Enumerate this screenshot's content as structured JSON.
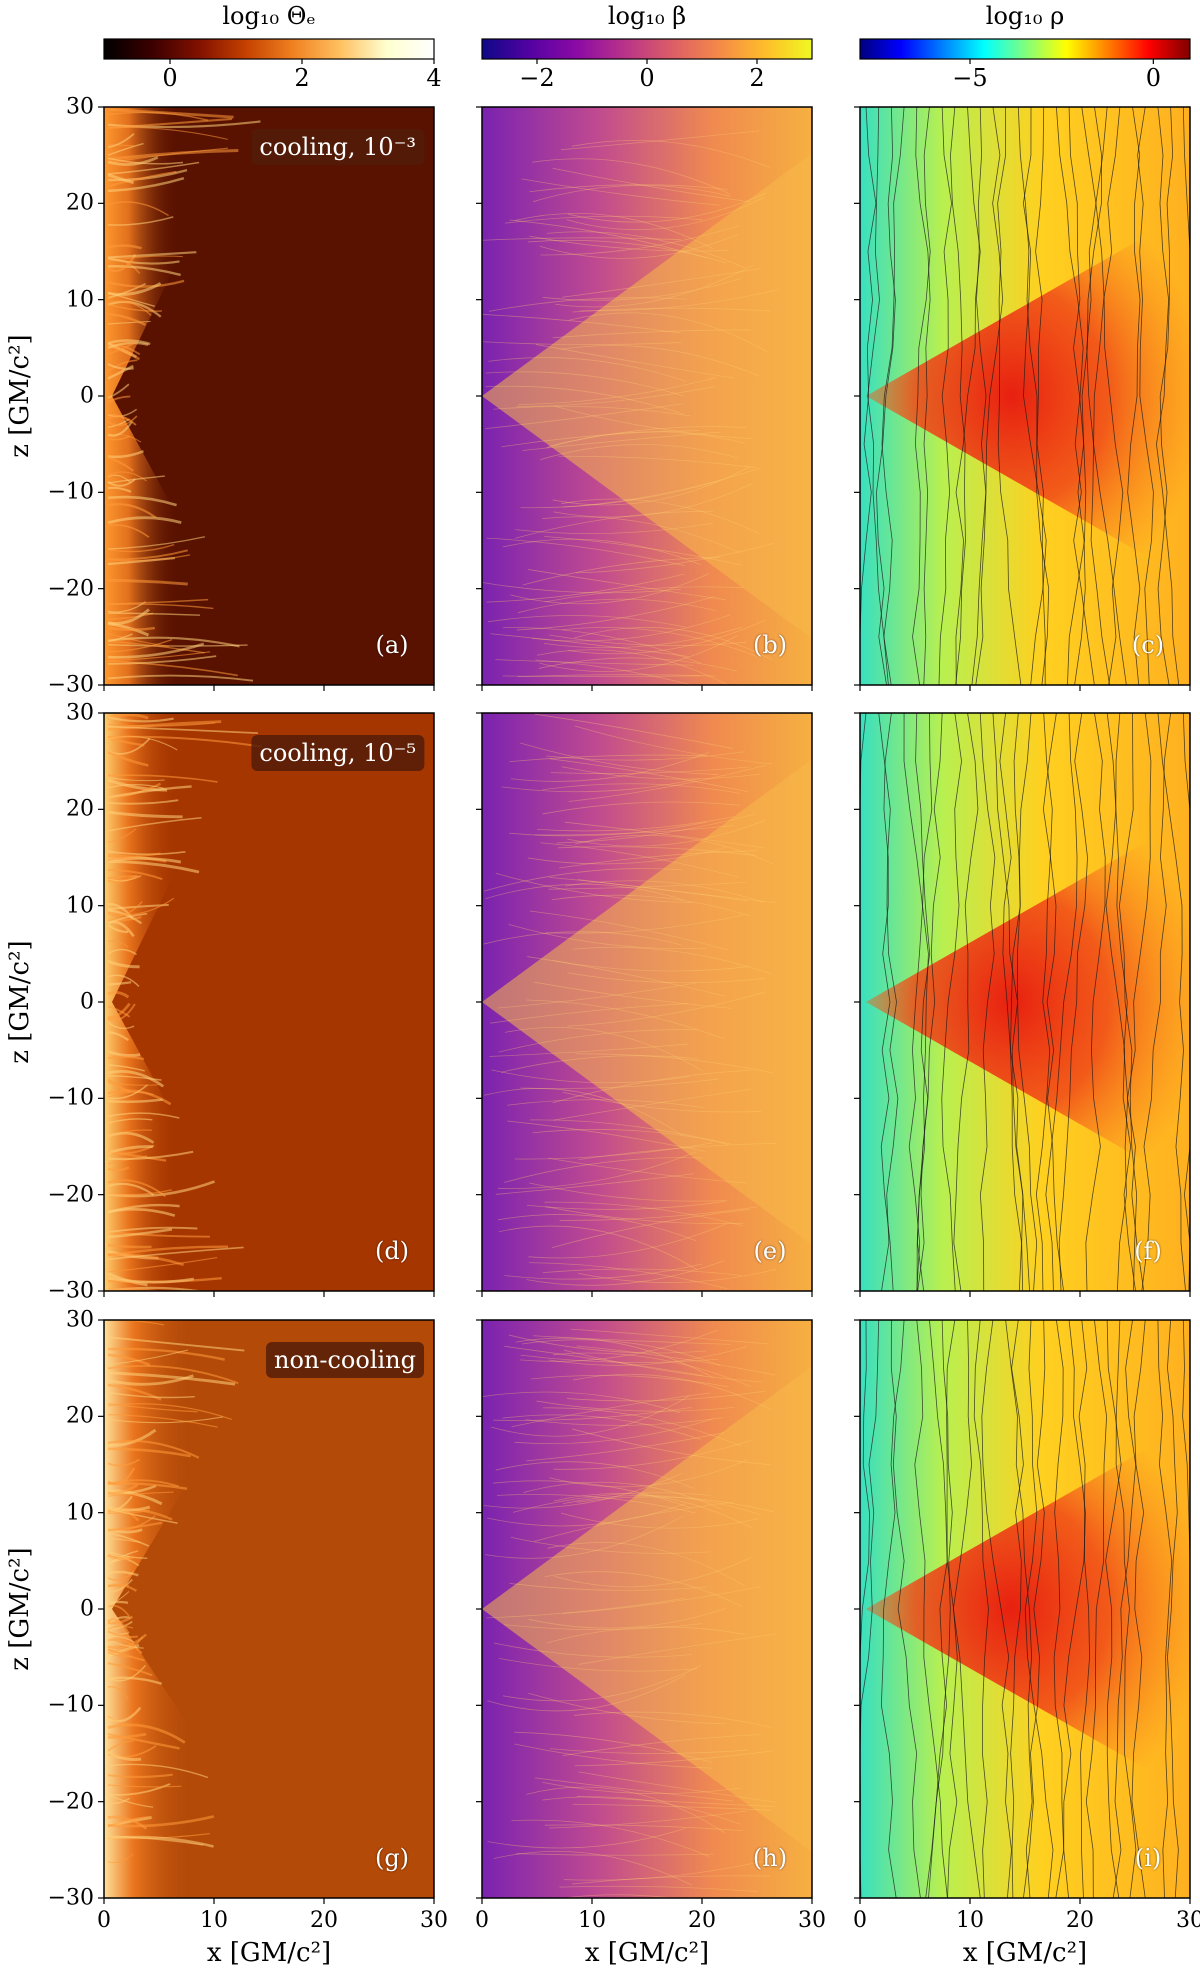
{
  "figure": {
    "colorbars": [
      {
        "id": "theta",
        "title": "log₁₀ Θₑ",
        "ticks": [
          {
            "value": 0,
            "label": "0"
          },
          {
            "value": 2,
            "label": "2"
          },
          {
            "value": 4,
            "label": "4"
          }
        ],
        "range": [
          -1,
          4
        ],
        "colormap": "afmhot"
      },
      {
        "id": "beta",
        "title": "log₁₀ β",
        "ticks": [
          {
            "value": -2,
            "label": "−2"
          },
          {
            "value": 0,
            "label": "0"
          },
          {
            "value": 2,
            "label": "2"
          }
        ],
        "range": [
          -3,
          3
        ],
        "colormap": "plasma"
      },
      {
        "id": "rho",
        "title": "log₁₀ ρ",
        "ticks": [
          {
            "value": -5,
            "label": "−5"
          },
          {
            "value": 0,
            "label": "0"
          }
        ],
        "range": [
          -8,
          1
        ],
        "colormap": "jet"
      }
    ],
    "rows": [
      {
        "tag": "cooling, 10⁻³",
        "labels": [
          "(a)",
          "(b)",
          "(c)"
        ]
      },
      {
        "tag": "cooling, 10⁻⁵",
        "labels": [
          "(d)",
          "(e)",
          "(f)"
        ]
      },
      {
        "tag": "non-cooling",
        "labels": [
          "(g)",
          "(h)",
          "(i)"
        ]
      }
    ],
    "y_axis": {
      "label": "z [GM/c²]",
      "ticks": [
        {
          "value": 30,
          "label": "30"
        },
        {
          "value": 20,
          "label": "20"
        },
        {
          "value": 10,
          "label": "10"
        },
        {
          "value": 0,
          "label": "0"
        },
        {
          "value": -10,
          "label": "−10"
        },
        {
          "value": -20,
          "label": "−20"
        },
        {
          "value": -30,
          "label": "−30"
        }
      ],
      "range": [
        -30,
        30
      ]
    },
    "x_axis": {
      "label": "x [GM/c²]",
      "ticks": [
        {
          "value": 0,
          "label": "0"
        },
        {
          "value": 10,
          "label": "10"
        },
        {
          "value": 20,
          "label": "20"
        },
        {
          "value": 30,
          "label": "30"
        }
      ],
      "range": [
        0,
        30
      ]
    }
  }
}
